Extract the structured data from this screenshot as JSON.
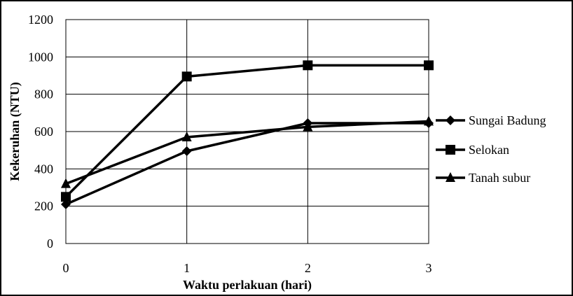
{
  "chart_data": {
    "type": "line",
    "title": "",
    "xlabel": "Waktu perlakuan (hari)",
    "ylabel": "Kekeruhan (NTU)",
    "x": [
      0,
      1,
      2,
      3
    ],
    "x_ticks": [
      "0",
      "1",
      "2",
      "3"
    ],
    "ylim": [
      0,
      1200
    ],
    "y_ticks": [
      "0",
      "200",
      "400",
      "600",
      "800",
      "1000",
      "1200"
    ],
    "grid": true,
    "legend_position": "right",
    "series": [
      {
        "name": "Sungai Badung",
        "marker": "diamond",
        "color": "#000000",
        "values": [
          210,
          495,
          645,
          645
        ]
      },
      {
        "name": "Selokan",
        "marker": "square",
        "color": "#000000",
        "values": [
          250,
          895,
          955,
          955
        ]
      },
      {
        "name": "Tanah subur",
        "marker": "triangle",
        "color": "#000000",
        "values": [
          320,
          570,
          625,
          655
        ]
      }
    ]
  }
}
